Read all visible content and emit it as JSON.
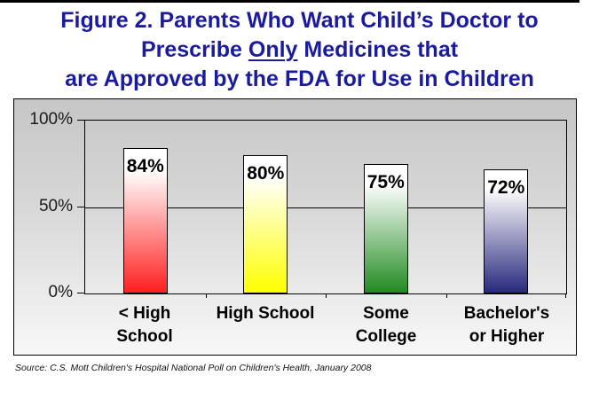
{
  "page": {
    "title_color": "#1b1b9e",
    "title_lines": {
      "line1": "Figure 2. Parents Who Want Child’s Doctor to",
      "line2_pre": "Prescribe ",
      "line2_underlined": "Only",
      "line2_post": " Medicines that",
      "line3": "are Approved by the FDA for Use in Children"
    },
    "source": "Source: C.S. Mott Children's Hospital National Poll on Children's Health, January 2008"
  },
  "chart_data": {
    "type": "bar",
    "title": "Figure 2. Parents Who Want Child’s Doctor to Prescribe Only Medicines that are Approved by the FDA for Use in Children",
    "categories": [
      "< High\nSchool",
      "High School",
      "Some\nCollege",
      "Bachelor's\nor Higher"
    ],
    "values": [
      84,
      80,
      75,
      72
    ],
    "value_labels": [
      "84%",
      "80%",
      "75%",
      "72%"
    ],
    "bar_colors": [
      "#ff1f1f",
      "#ffff00",
      "#228b22",
      "#28287d"
    ],
    "bar_gradient_top": "#ffffff",
    "xlabel": "",
    "ylabel": "",
    "yticks": [
      "100%",
      "50%",
      "0%"
    ],
    "ylim": [
      0,
      100
    ],
    "gridlines_at": [
      50,
      100
    ],
    "legend": "none",
    "plot_bg_top": "#c6c6c6",
    "plot_bg_bottom": "#f8f8f8",
    "source": "Source: C.S. Mott Children's Hospital National Poll on Children's Health, January 2008"
  }
}
